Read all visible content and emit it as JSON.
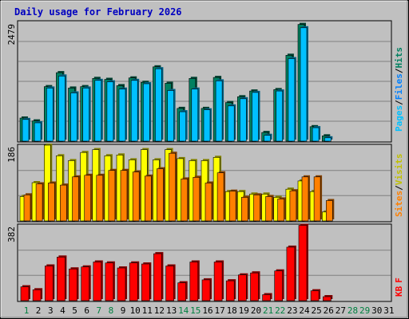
{
  "title": "Daily usage for February 2026",
  "colors": {
    "background": "#c0c0c0",
    "grid": "#808080",
    "hits_front": "#00c0ff",
    "hits_back": "#008060",
    "visits_front": "#ffff00",
    "visits_back": "#c0c000",
    "sites_front": "#ff8000",
    "sites_back": "#804000",
    "kbytes_front": "#ff0000",
    "kbytes_back": "#800000",
    "title": "#0000c0",
    "weekday": "#000000",
    "weekend": "#008040"
  },
  "legends": {
    "top": [
      "Pages",
      "/",
      "Files",
      "/",
      "Hits"
    ],
    "middle": [
      "Sites",
      "/",
      "Visits"
    ],
    "bottom": [
      "KB",
      "F"
    ]
  },
  "chart_data": [
    {
      "type": "bar",
      "name": "hits-files-pages",
      "max_label": "2479",
      "ylim": [
        0,
        2479
      ],
      "x": [
        "1",
        "2",
        "3",
        "4",
        "5",
        "6",
        "7",
        "8",
        "9",
        "10",
        "11",
        "12",
        "13",
        "14",
        "15",
        "16",
        "17",
        "18",
        "19",
        "20",
        "21",
        "22",
        "23",
        "24",
        "25",
        "26",
        "27",
        "28",
        "29",
        "30",
        "31"
      ],
      "weekend": [
        true,
        false,
        false,
        false,
        false,
        false,
        true,
        true,
        false,
        false,
        false,
        false,
        false,
        true,
        true,
        false,
        false,
        false,
        false,
        false,
        true,
        true,
        false,
        false,
        false,
        false,
        false,
        true,
        true,
        false,
        false
      ],
      "series": [
        {
          "name": "Hits",
          "values": [
            480,
            420,
            1130,
            1420,
            1100,
            1130,
            1300,
            1280,
            1150,
            1310,
            1220,
            1540,
            1200,
            680,
            1300,
            680,
            1320,
            800,
            920,
            1040,
            180,
            1070,
            1780,
            2420,
            300,
            110,
            0,
            0,
            0,
            0,
            0
          ]
        },
        {
          "name": "Files",
          "values": [
            450,
            380,
            1100,
            1350,
            1000,
            1100,
            1260,
            1230,
            1080,
            1260,
            1190,
            1500,
            1050,
            610,
            1080,
            650,
            1250,
            730,
            880,
            1010,
            120,
            1040,
            1710,
            2350,
            280,
            70,
            0,
            0,
            0,
            0,
            0
          ]
        }
      ]
    },
    {
      "type": "bar",
      "name": "visits-sites",
      "max_label": "186",
      "ylim": [
        0,
        186
      ],
      "x": [
        "1",
        "2",
        "3",
        "4",
        "5",
        "6",
        "7",
        "8",
        "9",
        "10",
        "11",
        "12",
        "13",
        "14",
        "15",
        "16",
        "17",
        "18",
        "19",
        "20",
        "21",
        "22",
        "23",
        "24",
        "25",
        "26",
        "27",
        "28",
        "29",
        "30",
        "31"
      ],
      "series": [
        {
          "name": "Visits",
          "values": [
            60,
            94,
            186,
            160,
            148,
            168,
            175,
            160,
            162,
            150,
            175,
            150,
            175,
            153,
            148,
            148,
            156,
            72,
            72,
            66,
            66,
            58,
            78,
            98,
            72,
            22,
            0,
            0,
            0,
            0,
            0
          ]
        },
        {
          "name": "Sites",
          "values": [
            64,
            91,
            93,
            88,
            108,
            112,
            112,
            124,
            124,
            120,
            110,
            128,
            166,
            103,
            107,
            93,
            118,
            73,
            58,
            64,
            60,
            54,
            74,
            108,
            108,
            50,
            0,
            0,
            0,
            0,
            0
          ]
        }
      ]
    },
    {
      "type": "bar",
      "name": "kbytes",
      "max_label": "382",
      "ylim": [
        0,
        382
      ],
      "x": [
        "1",
        "2",
        "3",
        "4",
        "5",
        "6",
        "7",
        "8",
        "9",
        "10",
        "11",
        "12",
        "13",
        "14",
        "15",
        "16",
        "17",
        "18",
        "19",
        "20",
        "21",
        "22",
        "23",
        "24",
        "25",
        "26",
        "27",
        "28",
        "29",
        "30",
        "31"
      ],
      "series": [
        {
          "name": "KB F",
          "values": [
            70,
            55,
            175,
            220,
            160,
            170,
            195,
            190,
            165,
            190,
            185,
            237,
            175,
            90,
            195,
            105,
            195,
            100,
            130,
            140,
            30,
            150,
            270,
            380,
            50,
            20,
            0,
            0,
            0,
            0,
            0
          ]
        }
      ]
    }
  ]
}
